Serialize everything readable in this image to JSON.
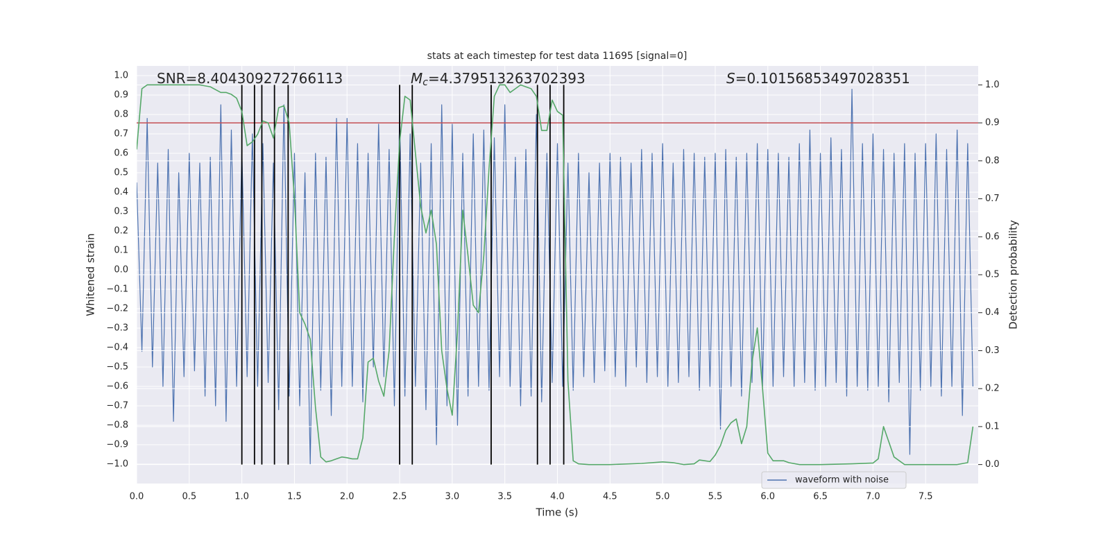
{
  "chart_data": {
    "type": "line",
    "title": "stats at each timestep for test data 11695 [signal=0]",
    "x_label": "Time (s)",
    "y_label": "Whitened strain",
    "y2_label": "Detection probability",
    "xlim": [
      0,
      8
    ],
    "ylim": [
      -1.1,
      1.05
    ],
    "y2lim": [
      -0.05,
      1.05
    ],
    "xticks": [
      {
        "value": 0,
        "label": "0.0"
      },
      0.5,
      {
        "value": 1,
        "label": "1.0"
      },
      1.5,
      {
        "value": 2,
        "label": "2.0"
      },
      2.5,
      {
        "value": 3,
        "label": "3.0"
      },
      3.5,
      {
        "value": 4,
        "label": "4.0"
      },
      4.5,
      {
        "value": 5,
        "label": "5.0"
      },
      5.5,
      {
        "value": 6,
        "label": "6.0"
      },
      6.5,
      {
        "value": 7,
        "label": "7.0"
      },
      7.5
    ],
    "yticks": [
      {
        "value": -1,
        "label": "−1.0"
      },
      {
        "value": -0.9,
        "label": "−0.9"
      },
      {
        "value": -0.8,
        "label": "−0.8"
      },
      {
        "value": -0.7,
        "label": "−0.7"
      },
      {
        "value": -0.6,
        "label": "−0.6"
      },
      {
        "value": -0.5,
        "label": "−0.5"
      },
      {
        "value": -0.4,
        "label": "−0.4"
      },
      {
        "value": -0.3,
        "label": "−0.3"
      },
      {
        "value": -0.2,
        "label": "−0.2"
      },
      {
        "value": -0.1,
        "label": "−0.1"
      },
      {
        "value": 0,
        "label": "0.0"
      },
      0.1,
      0.2,
      0.3,
      0.4,
      0.5,
      0.6,
      0.7,
      0.8,
      0.9,
      {
        "value": 1,
        "label": "1.0"
      }
    ],
    "y2ticks": [
      {
        "value": 0,
        "label": "0.0"
      },
      0.1,
      0.2,
      0.3,
      0.4,
      0.5,
      0.6,
      0.7,
      0.8,
      0.9,
      {
        "value": 1,
        "label": "1.0"
      }
    ],
    "grid": true,
    "legend": "lower right",
    "annotations": [
      {
        "text": "SNR=8.404309272766113"
      },
      {
        "symbol": "M",
        "subscript": "c",
        "text": "=4.379513263702393"
      },
      {
        "symbol": "S",
        "text": "=0.10156853497028351"
      }
    ],
    "threshold": 0.9,
    "threshold_color": "#c44e52",
    "detections": [
      1.0,
      1.12,
      1.19,
      1.31,
      1.44,
      2.5,
      2.62,
      3.37,
      3.81,
      3.93,
      4.06
    ],
    "detection_range": [
      0,
      1
    ],
    "detection_color": "#000000",
    "series": [
      {
        "name": "waveform with noise",
        "color": "#4c72b0",
        "x": [
          0,
          0.05,
          0.1,
          0.15,
          0.2,
          0.25,
          0.3,
          0.35,
          0.4,
          0.45,
          0.5,
          0.55,
          0.6,
          0.65,
          0.7,
          0.75,
          0.8,
          0.85,
          0.9,
          0.95,
          1,
          1.05,
          1.1,
          1.15,
          1.2,
          1.25,
          1.3,
          1.35,
          1.4,
          1.45,
          1.5,
          1.55,
          1.6,
          1.65,
          1.7,
          1.75,
          1.8,
          1.85,
          1.9,
          1.95,
          2,
          2.05,
          2.1,
          2.15,
          2.2,
          2.25,
          2.3,
          2.35,
          2.4,
          2.45,
          2.5,
          2.55,
          2.6,
          2.65,
          2.7,
          2.75,
          2.8,
          2.85,
          2.9,
          2.95,
          3,
          3.05,
          3.1,
          3.15,
          3.2,
          3.25,
          3.3,
          3.35,
          3.4,
          3.45,
          3.5,
          3.55,
          3.6,
          3.65,
          3.7,
          3.75,
          3.8,
          3.85,
          3.9,
          3.95,
          4,
          4.05,
          4.1,
          4.15,
          4.2,
          4.25,
          4.3,
          4.35,
          4.4,
          4.45,
          4.5,
          4.55,
          4.6,
          4.65,
          4.7,
          4.75,
          4.8,
          4.85,
          4.9,
          4.95,
          5,
          5.05,
          5.1,
          5.15,
          5.2,
          5.25,
          5.3,
          5.35,
          5.4,
          5.45,
          5.5,
          5.55,
          5.6,
          5.65,
          5.7,
          5.75,
          5.8,
          5.85,
          5.9,
          5.95,
          6,
          6.05,
          6.1,
          6.15,
          6.2,
          6.25,
          6.3,
          6.35,
          6.4,
          6.45,
          6.5,
          6.55,
          6.6,
          6.65,
          6.7,
          6.75,
          6.8,
          6.85,
          6.9,
          6.95,
          7,
          7.05,
          7.1,
          7.15,
          7.2,
          7.25,
          7.3,
          7.35,
          7.4,
          7.45,
          7.5,
          7.55,
          7.6,
          7.65,
          7.7,
          7.75,
          7.8,
          7.85,
          7.9,
          7.95
        ],
        "values": [
          0.45,
          -0.42,
          0.78,
          -0.5,
          0.55,
          -0.6,
          0.62,
          -0.78,
          0.5,
          -0.55,
          0.6,
          -0.52,
          0.55,
          -0.65,
          0.58,
          -0.7,
          0.85,
          -0.78,
          0.72,
          -0.6,
          0.62,
          -0.55,
          0.7,
          -0.6,
          0.65,
          -0.58,
          0.55,
          -0.72,
          0.85,
          -0.65,
          0.6,
          -0.7,
          0.5,
          -1.0,
          0.6,
          -0.62,
          0.58,
          -0.75,
          0.78,
          -0.6,
          0.78,
          -0.6,
          0.65,
          -0.68,
          0.6,
          -0.5,
          0.75,
          -0.55,
          0.62,
          -0.7,
          0.8,
          -0.65,
          0.7,
          -0.6,
          0.55,
          -0.72,
          0.65,
          -0.9,
          0.85,
          -0.7,
          0.75,
          -0.8,
          0.6,
          -0.65,
          0.7,
          -0.6,
          0.72,
          -0.62,
          0.68,
          -0.55,
          0.85,
          -0.6,
          0.58,
          -0.7,
          0.62,
          -0.65,
          0.8,
          -0.68,
          0.6,
          -0.58,
          0.65,
          -0.6,
          0.55,
          -0.62,
          0.6,
          -0.55,
          0.5,
          -0.58,
          0.55,
          -0.52,
          0.6,
          -0.55,
          0.58,
          -0.6,
          0.55,
          -0.5,
          0.62,
          -0.58,
          0.6,
          -0.55,
          0.65,
          -0.6,
          0.55,
          -0.58,
          0.62,
          -0.55,
          0.6,
          -0.62,
          0.58,
          -0.6,
          0.6,
          -0.82,
          0.62,
          -0.6,
          0.58,
          -0.65,
          0.6,
          -0.58,
          0.65,
          -0.6,
          0.62,
          -0.6,
          0.6,
          -0.55,
          0.58,
          -0.6,
          0.65,
          -0.58,
          0.72,
          -0.62,
          0.6,
          -0.6,
          0.68,
          -0.58,
          0.62,
          -0.65,
          0.93,
          -0.6,
          0.65,
          -0.62,
          0.7,
          -0.6,
          0.62,
          -0.68,
          0.6,
          -0.58,
          0.65,
          -0.95,
          0.6,
          -0.62,
          0.65,
          -0.6,
          0.7,
          -0.65,
          0.62,
          -0.6,
          0.72,
          -0.75,
          0.65,
          -0.6
        ]
      },
      {
        "color": "#55a868",
        "axis": "y2",
        "x": [
          0,
          0.05,
          0.1,
          0.2,
          0.3,
          0.4,
          0.5,
          0.6,
          0.7,
          0.8,
          0.85,
          0.9,
          0.95,
          1,
          1.05,
          1.1,
          1.15,
          1.2,
          1.25,
          1.3,
          1.35,
          1.4,
          1.45,
          1.5,
          1.55,
          1.6,
          1.65,
          1.7,
          1.75,
          1.8,
          1.85,
          1.9,
          1.95,
          2,
          2.05,
          2.1,
          2.15,
          2.2,
          2.25,
          2.3,
          2.35,
          2.4,
          2.45,
          2.5,
          2.55,
          2.6,
          2.65,
          2.7,
          2.75,
          2.8,
          2.85,
          2.9,
          2.95,
          3,
          3.05,
          3.1,
          3.15,
          3.2,
          3.25,
          3.3,
          3.35,
          3.4,
          3.45,
          3.5,
          3.55,
          3.6,
          3.65,
          3.7,
          3.75,
          3.8,
          3.85,
          3.9,
          3.95,
          4,
          4.05,
          4.1,
          4.15,
          4.2,
          4.3,
          4.5,
          4.8,
          5,
          5.1,
          5.2,
          5.3,
          5.35,
          5.45,
          5.5,
          5.55,
          5.6,
          5.65,
          5.7,
          5.75,
          5.8,
          5.85,
          5.9,
          5.95,
          6,
          6.05,
          6.15,
          6.2,
          6.3,
          6.5,
          6.8,
          7,
          7.05,
          7.1,
          7.15,
          7.2,
          7.3,
          7.4,
          7.6,
          7.8,
          7.9,
          7.95
        ],
        "values": [
          0.83,
          0.99,
          1.0,
          1.0,
          1.0,
          1.0,
          1.0,
          1.0,
          0.995,
          0.98,
          0.98,
          0.975,
          0.965,
          0.93,
          0.84,
          0.85,
          0.87,
          0.905,
          0.9,
          0.86,
          0.94,
          0.945,
          0.9,
          0.7,
          0.4,
          0.37,
          0.33,
          0.15,
          0.02,
          0.007,
          0.01,
          0.015,
          0.02,
          0.018,
          0.015,
          0.015,
          0.07,
          0.27,
          0.28,
          0.22,
          0.18,
          0.3,
          0.6,
          0.85,
          0.97,
          0.96,
          0.82,
          0.68,
          0.61,
          0.67,
          0.58,
          0.3,
          0.2,
          0.13,
          0.35,
          0.67,
          0.55,
          0.42,
          0.4,
          0.55,
          0.78,
          0.97,
          1.0,
          1.0,
          0.98,
          0.99,
          1.0,
          0.995,
          0.99,
          0.97,
          0.88,
          0.88,
          0.96,
          0.93,
          0.92,
          0.22,
          0.01,
          0.002,
          0.0,
          0.0,
          0.003,
          0.007,
          0.005,
          0.0,
          0.002,
          0.012,
          0.008,
          0.025,
          0.05,
          0.09,
          0.11,
          0.12,
          0.055,
          0.1,
          0.27,
          0.36,
          0.2,
          0.03,
          0.01,
          0.01,
          0.005,
          0.0,
          0.0,
          0.002,
          0.004,
          0.015,
          0.1,
          0.06,
          0.02,
          0.0,
          0.0,
          0.0,
          0.0,
          0.005,
          0.1
        ]
      }
    ]
  }
}
